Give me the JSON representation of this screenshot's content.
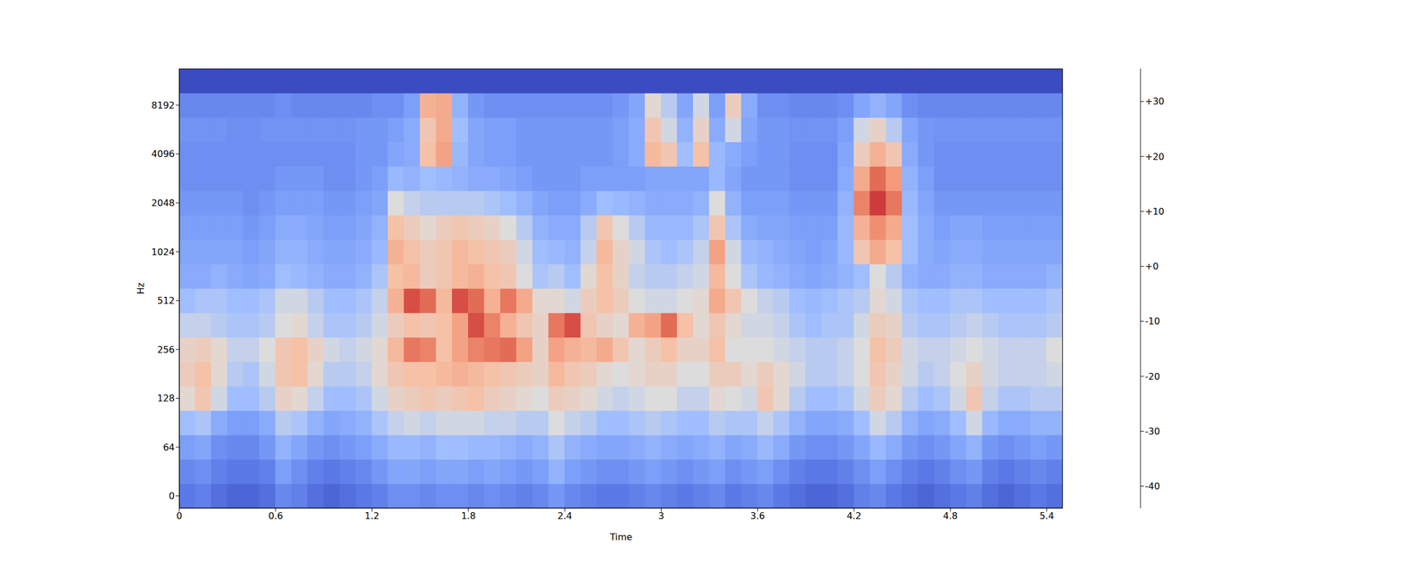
{
  "chart_data": {
    "type": "heatmap",
    "x_label": "Time",
    "y_label": "Hz",
    "x": [
      0.05,
      0.15,
      0.25,
      0.35,
      0.45,
      0.55,
      0.65,
      0.75,
      0.85,
      0.95,
      1.05,
      1.15,
      1.25,
      1.35,
      1.45,
      1.55,
      1.65,
      1.75,
      1.85,
      1.95,
      2.05,
      2.15,
      2.25,
      2.35,
      2.45,
      2.55,
      2.65,
      2.75,
      2.85,
      2.95,
      3.05,
      3.15,
      3.25,
      3.35,
      3.45,
      3.55,
      3.65,
      3.75,
      3.85,
      3.95,
      4.05,
      4.15,
      4.25,
      4.35,
      4.45,
      4.55,
      4.65,
      4.75,
      4.85,
      4.95,
      5.05,
      5.15,
      5.25,
      5.35,
      5.45
    ],
    "xlim": [
      0,
      5.5
    ],
    "xticks": [
      0,
      0.6,
      1.2,
      1.8,
      2.4,
      3,
      3.6,
      4.2,
      4.8,
      5.4
    ],
    "categories": [
      0,
      null,
      64,
      null,
      128,
      null,
      256,
      null,
      512,
      null,
      1024,
      null,
      2048,
      null,
      4096,
      null,
      8192,
      null
    ],
    "cells": [
      [
        -34,
        -32,
        -36,
        -38,
        -38,
        -36,
        -30,
        -32,
        -36,
        -38,
        -36,
        -34,
        -32,
        -28,
        -28,
        -30,
        -28,
        -28,
        -30,
        -28,
        -30,
        -32,
        -30,
        -26,
        -30,
        -32,
        -34,
        -34,
        -32,
        -30,
        -32,
        -34,
        -32,
        -30,
        -34,
        -32,
        -30,
        -34,
        -36,
        -38,
        -38,
        -36,
        -32,
        -30,
        -34,
        -36,
        -38,
        -36,
        -34,
        -32,
        -36,
        -38,
        -36,
        -34,
        -36
      ],
      [
        -30,
        -28,
        -32,
        -34,
        -34,
        -32,
        -24,
        -28,
        -32,
        -34,
        -32,
        -30,
        -26,
        -22,
        -22,
        -24,
        -22,
        -22,
        -24,
        -22,
        -24,
        -26,
        -24,
        -18,
        -24,
        -26,
        -28,
        -28,
        -26,
        -24,
        -26,
        -28,
        -26,
        -24,
        -28,
        -26,
        -24,
        -28,
        -32,
        -34,
        -34,
        -32,
        -28,
        -24,
        -28,
        -32,
        -34,
        -32,
        -28,
        -26,
        -32,
        -34,
        -32,
        -30,
        -32
      ],
      [
        -24,
        -22,
        -28,
        -30,
        -30,
        -26,
        -18,
        -22,
        -26,
        -28,
        -26,
        -24,
        -20,
        -16,
        -16,
        -18,
        -14,
        -14,
        -16,
        -16,
        -18,
        -20,
        -18,
        -12,
        -18,
        -20,
        -22,
        -22,
        -20,
        -18,
        -20,
        -22,
        -20,
        -18,
        -22,
        -20,
        -16,
        -20,
        -26,
        -28,
        -28,
        -26,
        -22,
        -16,
        -20,
        -26,
        -28,
        -26,
        -22,
        -18,
        -26,
        -28,
        -26,
        -24,
        -26
      ],
      [
        -14,
        -12,
        -20,
        -24,
        -24,
        -20,
        -10,
        -12,
        -18,
        -22,
        -20,
        -18,
        -12,
        -8,
        -6,
        -8,
        -6,
        -6,
        -6,
        -8,
        -8,
        -10,
        -10,
        -4,
        -8,
        -10,
        -14,
        -14,
        -12,
        -10,
        -12,
        -14,
        -14,
        -10,
        -12,
        -12,
        -8,
        -12,
        -18,
        -22,
        -22,
        -20,
        -14,
        -6,
        -10,
        -18,
        -22,
        -20,
        -14,
        -6,
        -16,
        -20,
        -20,
        -18,
        -18
      ],
      [
        -2,
        4,
        -6,
        -14,
        -14,
        -10,
        0,
        -2,
        -8,
        -14,
        -14,
        -12,
        -6,
        0,
        2,
        4,
        2,
        4,
        6,
        2,
        0,
        -2,
        -4,
        2,
        0,
        -2,
        -6,
        -8,
        -6,
        -4,
        -4,
        -8,
        -8,
        -2,
        -4,
        -6,
        4,
        -2,
        -10,
        -14,
        -14,
        -12,
        -6,
        2,
        -2,
        -10,
        -14,
        -12,
        -6,
        4,
        -8,
        -12,
        -12,
        -10,
        -10
      ],
      [
        2,
        6,
        -2,
        -10,
        -12,
        -6,
        4,
        6,
        -2,
        -10,
        -10,
        -8,
        -2,
        4,
        6,
        6,
        8,
        10,
        8,
        6,
        4,
        2,
        0,
        8,
        4,
        2,
        -2,
        -4,
        -2,
        0,
        0,
        -4,
        -4,
        2,
        2,
        -2,
        2,
        -2,
        -6,
        -10,
        -10,
        -8,
        -4,
        4,
        0,
        -6,
        -10,
        -8,
        -4,
        0,
        -6,
        -8,
        -8,
        -8,
        -6
      ],
      [
        0,
        2,
        -2,
        -8,
        -8,
        -4,
        4,
        6,
        0,
        -6,
        -8,
        -6,
        -2,
        8,
        22,
        20,
        6,
        14,
        20,
        22,
        24,
        14,
        0,
        14,
        10,
        8,
        12,
        4,
        -2,
        2,
        6,
        0,
        0,
        6,
        -4,
        -4,
        -4,
        -6,
        -8,
        -10,
        -10,
        -8,
        -4,
        6,
        2,
        -6,
        -8,
        -8,
        -6,
        -4,
        -6,
        -8,
        -8,
        -8,
        -4
      ],
      [
        -8,
        -8,
        -10,
        -12,
        -12,
        -10,
        -4,
        -2,
        -8,
        -12,
        -12,
        -10,
        -6,
        2,
        6,
        4,
        6,
        14,
        28,
        20,
        10,
        4,
        0,
        22,
        28,
        4,
        0,
        -2,
        10,
        14,
        24,
        6,
        -2,
        4,
        -2,
        -6,
        -6,
        -8,
        -12,
        -14,
        -12,
        -12,
        -6,
        2,
        0,
        -10,
        -12,
        -12,
        -10,
        -8,
        -10,
        -12,
        -12,
        -12,
        -10
      ],
      [
        -14,
        -12,
        -12,
        -14,
        -14,
        -12,
        -6,
        -6,
        -10,
        -14,
        -14,
        -12,
        -8,
        10,
        28,
        24,
        8,
        28,
        24,
        10,
        22,
        12,
        -2,
        -2,
        -6,
        2,
        6,
        2,
        -4,
        -6,
        -6,
        -4,
        -2,
        12,
        4,
        -4,
        -8,
        -10,
        -14,
        -16,
        -14,
        -12,
        -10,
        -2,
        -6,
        -12,
        -14,
        -14,
        -12,
        -12,
        -14,
        -14,
        -14,
        -14,
        -12
      ],
      [
        -20,
        -20,
        -18,
        -20,
        -22,
        -20,
        -14,
        -16,
        -18,
        -20,
        -20,
        -18,
        -12,
        6,
        8,
        2,
        4,
        8,
        10,
        6,
        4,
        -4,
        -12,
        -10,
        -14,
        -2,
        6,
        0,
        -8,
        -10,
        -10,
        -8,
        -6,
        8,
        -4,
        -12,
        -16,
        -18,
        -20,
        -22,
        -20,
        -18,
        -14,
        -4,
        -10,
        -18,
        -20,
        -20,
        -18,
        -18,
        -20,
        -20,
        -20,
        -20,
        -18
      ],
      [
        -22,
        -22,
        -22,
        -22,
        -24,
        -22,
        -18,
        -18,
        -20,
        -22,
        -22,
        -20,
        -16,
        10,
        6,
        2,
        4,
        8,
        6,
        4,
        2,
        -6,
        -14,
        -16,
        -18,
        -8,
        8,
        0,
        -6,
        -12,
        -14,
        -12,
        -8,
        14,
        -6,
        -16,
        -18,
        -20,
        -22,
        -24,
        -22,
        -16,
        4,
        12,
        6,
        -14,
        -20,
        -22,
        -20,
        -20,
        -22,
        -22,
        -22,
        -22,
        -22
      ],
      [
        -24,
        -24,
        -24,
        -24,
        -26,
        -24,
        -20,
        -20,
        -22,
        -24,
        -24,
        -22,
        -18,
        6,
        2,
        -2,
        2,
        4,
        2,
        0,
        -4,
        -10,
        -18,
        -20,
        -20,
        -10,
        4,
        -4,
        -10,
        -16,
        -16,
        -16,
        -12,
        4,
        -12,
        -20,
        -22,
        -22,
        -24,
        -24,
        -24,
        -16,
        10,
        18,
        12,
        -14,
        -20,
        -24,
        -22,
        -22,
        -24,
        -24,
        -24,
        -24,
        -24
      ],
      [
        -26,
        -26,
        -26,
        -26,
        -28,
        -26,
        -24,
        -24,
        -24,
        -26,
        -26,
        -24,
        -22,
        -4,
        -8,
        -10,
        -10,
        -10,
        -10,
        -12,
        -14,
        -18,
        -22,
        -24,
        -24,
        -20,
        -14,
        -16,
        -18,
        -20,
        -20,
        -20,
        -18,
        -4,
        -18,
        -24,
        -24,
        -24,
        -26,
        -26,
        -26,
        -18,
        20,
        30,
        22,
        -16,
        -22,
        -26,
        -26,
        -26,
        -26,
        -26,
        -26,
        -26,
        -26
      ],
      [
        -28,
        -28,
        -28,
        -28,
        -28,
        -28,
        -26,
        -26,
        -26,
        -28,
        -28,
        -26,
        -24,
        -16,
        -18,
        -14,
        -16,
        -18,
        -20,
        -20,
        -22,
        -24,
        -26,
        -26,
        -26,
        -24,
        -24,
        -24,
        -24,
        -22,
        -22,
        -22,
        -22,
        -16,
        -22,
        -26,
        -26,
        -26,
        -28,
        -28,
        -28,
        -20,
        12,
        24,
        16,
        -18,
        -24,
        -28,
        -28,
        -28,
        -28,
        -28,
        -28,
        -28,
        -28
      ],
      [
        -28,
        -28,
        -28,
        -28,
        -28,
        -28,
        -28,
        -28,
        -28,
        -28,
        -28,
        -26,
        -26,
        -22,
        -20,
        6,
        14,
        -16,
        -22,
        -24,
        -24,
        -26,
        -26,
        -26,
        -26,
        -26,
        -26,
        -24,
        -20,
        8,
        4,
        -14,
        6,
        -16,
        -20,
        -24,
        -26,
        -26,
        -28,
        -28,
        -28,
        -22,
        2,
        10,
        4,
        -20,
        -26,
        -28,
        -28,
        -28,
        -28,
        -28,
        -28,
        -28,
        -28
      ],
      [
        -27,
        -27,
        -27,
        -28,
        -28,
        -27,
        -27,
        -27,
        -27,
        -27,
        -27,
        -26,
        -26,
        -24,
        -20,
        4,
        12,
        -14,
        -22,
        -24,
        -24,
        -26,
        -26,
        -26,
        -26,
        -26,
        -26,
        -24,
        -20,
        4,
        -6,
        -18,
        0,
        -20,
        -6,
        -22,
        -26,
        -26,
        -27,
        -27,
        -27,
        -24,
        -6,
        0,
        -10,
        -22,
        -26,
        -27,
        -27,
        -27,
        -27,
        -27,
        -27,
        -27,
        -27
      ],
      [
        -30,
        -30,
        -30,
        -30,
        -30,
        -30,
        -28,
        -30,
        -30,
        -30,
        -30,
        -30,
        -28,
        -28,
        -24,
        10,
        12,
        -18,
        -26,
        -28,
        -28,
        -28,
        -28,
        -28,
        -28,
        -28,
        -28,
        -26,
        -22,
        -2,
        -10,
        -22,
        -6,
        -24,
        2,
        -20,
        -28,
        -28,
        -30,
        -30,
        -30,
        -28,
        -22,
        -18,
        -22,
        -28,
        -30,
        -30,
        -30,
        -30,
        -30,
        -30,
        -30,
        -30,
        -30
      ],
      [
        -44,
        -44,
        -44,
        -44,
        -44,
        -44,
        -44,
        -44,
        -44,
        -44,
        -44,
        -44,
        -44,
        -44,
        -44,
        -44,
        -44,
        -44,
        -44,
        -44,
        -44,
        -44,
        -44,
        -44,
        -44,
        -44,
        -44,
        -44,
        -44,
        -44,
        -44,
        -44,
        -44,
        -44,
        -44,
        -44,
        -44,
        -44,
        -44,
        -44,
        -44,
        -44,
        -44,
        -44,
        -44,
        -44,
        -44,
        -44,
        -44,
        -44,
        -44,
        -44,
        -44,
        -44,
        -44
      ]
    ],
    "colorbar": {
      "range": [
        -44,
        36
      ],
      "ticks": [
        -40,
        -30,
        -20,
        -10,
        {
          "value": 0,
          "label": "+0"
        },
        {
          "value": 10,
          "label": "+10"
        },
        {
          "value": 20,
          "label": "+20"
        },
        {
          "value": 30,
          "label": "+30"
        }
      ]
    }
  }
}
